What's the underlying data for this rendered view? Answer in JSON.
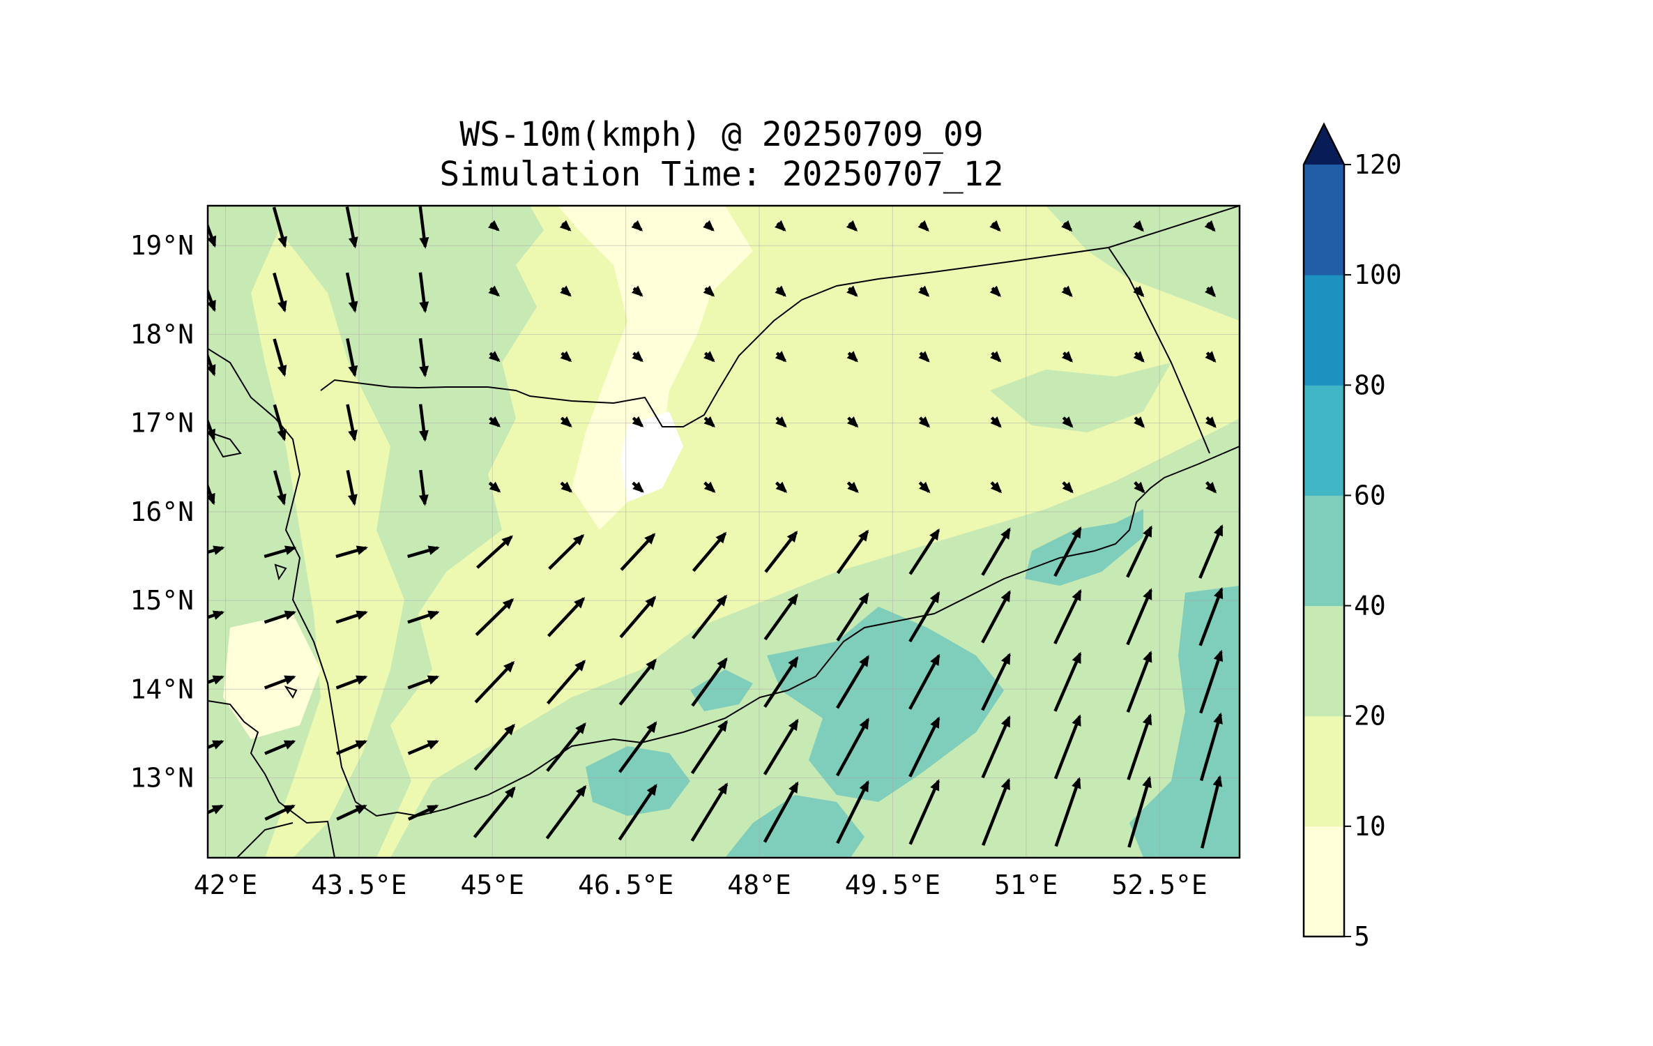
{
  "figure": {
    "title_line1": "WS-10m(kmph) @ 20250709_09",
    "title_line2": "Simulation Time: 20250707_12"
  },
  "map": {
    "lon_range": [
      41.8,
      53.4
    ],
    "lat_range": [
      12.1,
      19.45
    ],
    "lon_ticks": [
      42,
      43.5,
      45,
      46.5,
      48,
      49.5,
      51,
      52.5
    ],
    "lon_tick_labels": [
      "42°E",
      "43.5°E",
      "45°E",
      "46.5°E",
      "48°E",
      "49.5°E",
      "51°E",
      "52.5°E"
    ],
    "lat_ticks": [
      19,
      18,
      17,
      16,
      15,
      14,
      13
    ],
    "lat_tick_labels": [
      "19°N",
      "18°N",
      "17°N",
      "16°N",
      "15°N",
      "14°N",
      "13°N"
    ],
    "gridlines": true,
    "quiver": "wind vectors at 10 m"
  },
  "colorbar": {
    "levels": [
      5,
      10,
      20,
      40,
      60,
      80,
      100,
      120
    ],
    "tick_labels": [
      "5",
      "10",
      "20",
      "40",
      "60",
      "80",
      "100",
      "120"
    ],
    "colors": [
      "#ffffd9",
      "#edf8b1",
      "#c7e9b4",
      "#7fcdbb",
      "#41b6c4",
      "#1d91c0",
      "#225ea8",
      "#253494"
    ],
    "extend_color": "#081d58",
    "extend": "max"
  }
}
